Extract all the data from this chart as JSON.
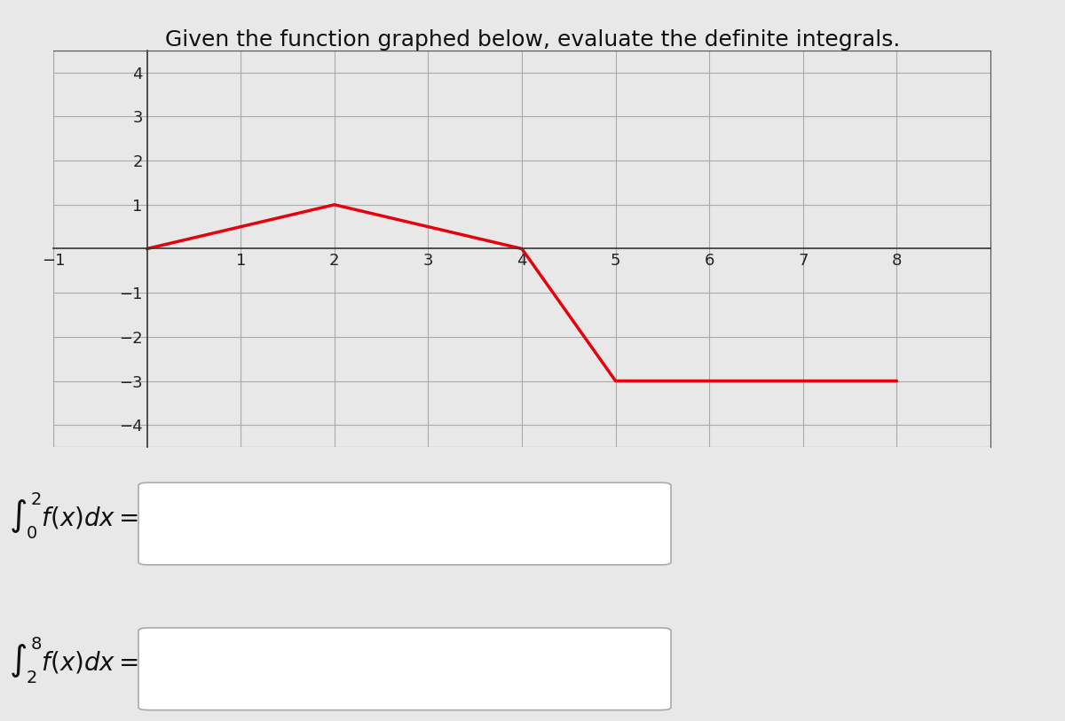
{
  "title": "Given the function graphed below, evaluate the definite integrals.",
  "title_fontsize": 18,
  "graph_x_points": [
    0,
    2,
    4,
    5,
    8
  ],
  "graph_y_points": [
    0,
    1,
    0,
    -3,
    -3
  ],
  "line_color": "#e8000d",
  "line_width": 2.5,
  "xlim": [
    -1,
    9
  ],
  "ylim": [
    -4.5,
    4.5
  ],
  "xticks": [
    -1,
    1,
    2,
    3,
    4,
    5,
    6,
    7,
    8
  ],
  "yticks": [
    -4,
    -3,
    -2,
    -1,
    1,
    2,
    3,
    4
  ],
  "grid_color": "#aaaaaa",
  "background_color": "#e8e8e8",
  "ax_background": "#e8e8e8",
  "integral1_lower": 0,
  "integral1_upper": 2,
  "integral1_label": "$\\int_0^2 f(x)dx =$",
  "integral2_lower": 2,
  "integral2_upper": 8,
  "integral2_label": "$\\int_2^8 f(x)dx =$",
  "box_color": "#ffffff",
  "box_edge_color": "#aaaaaa",
  "fig_width": 12.0,
  "fig_height": 8.13
}
